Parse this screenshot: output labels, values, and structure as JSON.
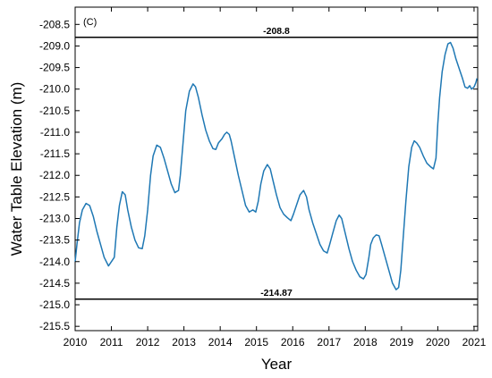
{
  "chart_data": {
    "type": "line",
    "panel_label": "(C)",
    "xlabel": "Year",
    "ylabel": "Water Table Elevation (m)",
    "xlim": [
      2010,
      2021.1
    ],
    "ylim": [
      -215.6,
      -208.1
    ],
    "x_ticks": [
      "2010",
      "2011",
      "2012",
      "2013",
      "2014",
      "2015",
      "2016",
      "2017",
      "2018",
      "2019",
      "2020",
      "2021"
    ],
    "y_ticks": [
      "-208.5",
      "-209.0",
      "-209.5",
      "-210.0",
      "-210.5",
      "-211.0",
      "-211.5",
      "-212.0",
      "-212.5",
      "-213.0",
      "-213.5",
      "-214.0",
      "-214.5",
      "-215.0",
      "-215.5"
    ],
    "grid": false,
    "reference_lines": [
      {
        "value": -208.8,
        "label": "-208.8"
      },
      {
        "value": -214.87,
        "label": "-214.87"
      }
    ],
    "series": [
      {
        "color": "#1f78b4",
        "points": [
          [
            2010.0,
            -214.0
          ],
          [
            2010.05,
            -213.6
          ],
          [
            2010.12,
            -213.1
          ],
          [
            2010.2,
            -212.8
          ],
          [
            2010.3,
            -212.65
          ],
          [
            2010.4,
            -212.7
          ],
          [
            2010.5,
            -212.95
          ],
          [
            2010.6,
            -213.3
          ],
          [
            2010.7,
            -213.6
          ],
          [
            2010.8,
            -213.9
          ],
          [
            2010.92,
            -214.1
          ],
          [
            2011.0,
            -214.0
          ],
          [
            2011.08,
            -213.9
          ],
          [
            2011.15,
            -213.2
          ],
          [
            2011.22,
            -212.7
          ],
          [
            2011.3,
            -212.38
          ],
          [
            2011.38,
            -212.45
          ],
          [
            2011.45,
            -212.8
          ],
          [
            2011.55,
            -213.2
          ],
          [
            2011.65,
            -213.5
          ],
          [
            2011.75,
            -213.68
          ],
          [
            2011.85,
            -213.7
          ],
          [
            2011.92,
            -213.4
          ],
          [
            2012.0,
            -212.8
          ],
          [
            2012.08,
            -212.0
          ],
          [
            2012.15,
            -211.55
          ],
          [
            2012.25,
            -211.3
          ],
          [
            2012.35,
            -211.35
          ],
          [
            2012.45,
            -211.6
          ],
          [
            2012.55,
            -211.9
          ],
          [
            2012.65,
            -212.2
          ],
          [
            2012.75,
            -212.4
          ],
          [
            2012.85,
            -212.35
          ],
          [
            2012.9,
            -212.0
          ],
          [
            2012.98,
            -211.2
          ],
          [
            2013.05,
            -210.5
          ],
          [
            2013.15,
            -210.05
          ],
          [
            2013.25,
            -209.88
          ],
          [
            2013.32,
            -209.95
          ],
          [
            2013.4,
            -210.2
          ],
          [
            2013.5,
            -210.6
          ],
          [
            2013.6,
            -210.95
          ],
          [
            2013.7,
            -211.2
          ],
          [
            2013.8,
            -211.38
          ],
          [
            2013.88,
            -211.4
          ],
          [
            2013.95,
            -211.25
          ],
          [
            2014.05,
            -211.15
          ],
          [
            2014.12,
            -211.05
          ],
          [
            2014.18,
            -211.0
          ],
          [
            2014.25,
            -211.05
          ],
          [
            2014.3,
            -211.2
          ],
          [
            2014.4,
            -211.6
          ],
          [
            2014.5,
            -212.0
          ],
          [
            2014.6,
            -212.35
          ],
          [
            2014.7,
            -212.7
          ],
          [
            2014.8,
            -212.85
          ],
          [
            2014.9,
            -212.8
          ],
          [
            2014.98,
            -212.85
          ],
          [
            2015.05,
            -212.6
          ],
          [
            2015.12,
            -212.2
          ],
          [
            2015.2,
            -211.9
          ],
          [
            2015.3,
            -211.75
          ],
          [
            2015.38,
            -211.85
          ],
          [
            2015.45,
            -212.1
          ],
          [
            2015.55,
            -212.45
          ],
          [
            2015.65,
            -212.75
          ],
          [
            2015.75,
            -212.9
          ],
          [
            2015.85,
            -212.98
          ],
          [
            2015.95,
            -213.05
          ],
          [
            2016.02,
            -212.9
          ],
          [
            2016.1,
            -212.7
          ],
          [
            2016.2,
            -212.45
          ],
          [
            2016.3,
            -212.35
          ],
          [
            2016.38,
            -212.5
          ],
          [
            2016.45,
            -212.8
          ],
          [
            2016.55,
            -213.1
          ],
          [
            2016.65,
            -213.35
          ],
          [
            2016.75,
            -213.6
          ],
          [
            2016.85,
            -213.75
          ],
          [
            2016.95,
            -213.8
          ],
          [
            2017.02,
            -213.6
          ],
          [
            2017.1,
            -213.35
          ],
          [
            2017.2,
            -213.05
          ],
          [
            2017.28,
            -212.92
          ],
          [
            2017.35,
            -213.0
          ],
          [
            2017.45,
            -213.35
          ],
          [
            2017.55,
            -213.7
          ],
          [
            2017.65,
            -214.0
          ],
          [
            2017.75,
            -214.2
          ],
          [
            2017.85,
            -214.35
          ],
          [
            2017.95,
            -214.4
          ],
          [
            2018.02,
            -214.3
          ],
          [
            2018.1,
            -213.9
          ],
          [
            2018.15,
            -213.6
          ],
          [
            2018.22,
            -213.45
          ],
          [
            2018.3,
            -213.38
          ],
          [
            2018.38,
            -213.4
          ],
          [
            2018.45,
            -213.6
          ],
          [
            2018.55,
            -213.9
          ],
          [
            2018.65,
            -214.2
          ],
          [
            2018.75,
            -214.5
          ],
          [
            2018.85,
            -214.65
          ],
          [
            2018.92,
            -214.6
          ],
          [
            2018.98,
            -214.2
          ],
          [
            2019.05,
            -213.4
          ],
          [
            2019.12,
            -212.6
          ],
          [
            2019.2,
            -211.8
          ],
          [
            2019.28,
            -211.35
          ],
          [
            2019.35,
            -211.2
          ],
          [
            2019.42,
            -211.25
          ],
          [
            2019.5,
            -211.35
          ],
          [
            2019.6,
            -211.55
          ],
          [
            2019.7,
            -211.72
          ],
          [
            2019.8,
            -211.8
          ],
          [
            2019.88,
            -211.85
          ],
          [
            2019.95,
            -211.6
          ],
          [
            2020.0,
            -210.8
          ],
          [
            2020.05,
            -210.2
          ],
          [
            2020.12,
            -209.6
          ],
          [
            2020.2,
            -209.2
          ],
          [
            2020.28,
            -208.95
          ],
          [
            2020.35,
            -208.92
          ],
          [
            2020.42,
            -209.05
          ],
          [
            2020.5,
            -209.3
          ],
          [
            2020.6,
            -209.55
          ],
          [
            2020.68,
            -209.75
          ],
          [
            2020.75,
            -209.95
          ],
          [
            2020.82,
            -209.98
          ],
          [
            2020.88,
            -209.92
          ],
          [
            2020.93,
            -210.0
          ],
          [
            2021.0,
            -209.95
          ],
          [
            2021.05,
            -209.85
          ],
          [
            2021.08,
            -209.75
          ]
        ]
      }
    ]
  }
}
